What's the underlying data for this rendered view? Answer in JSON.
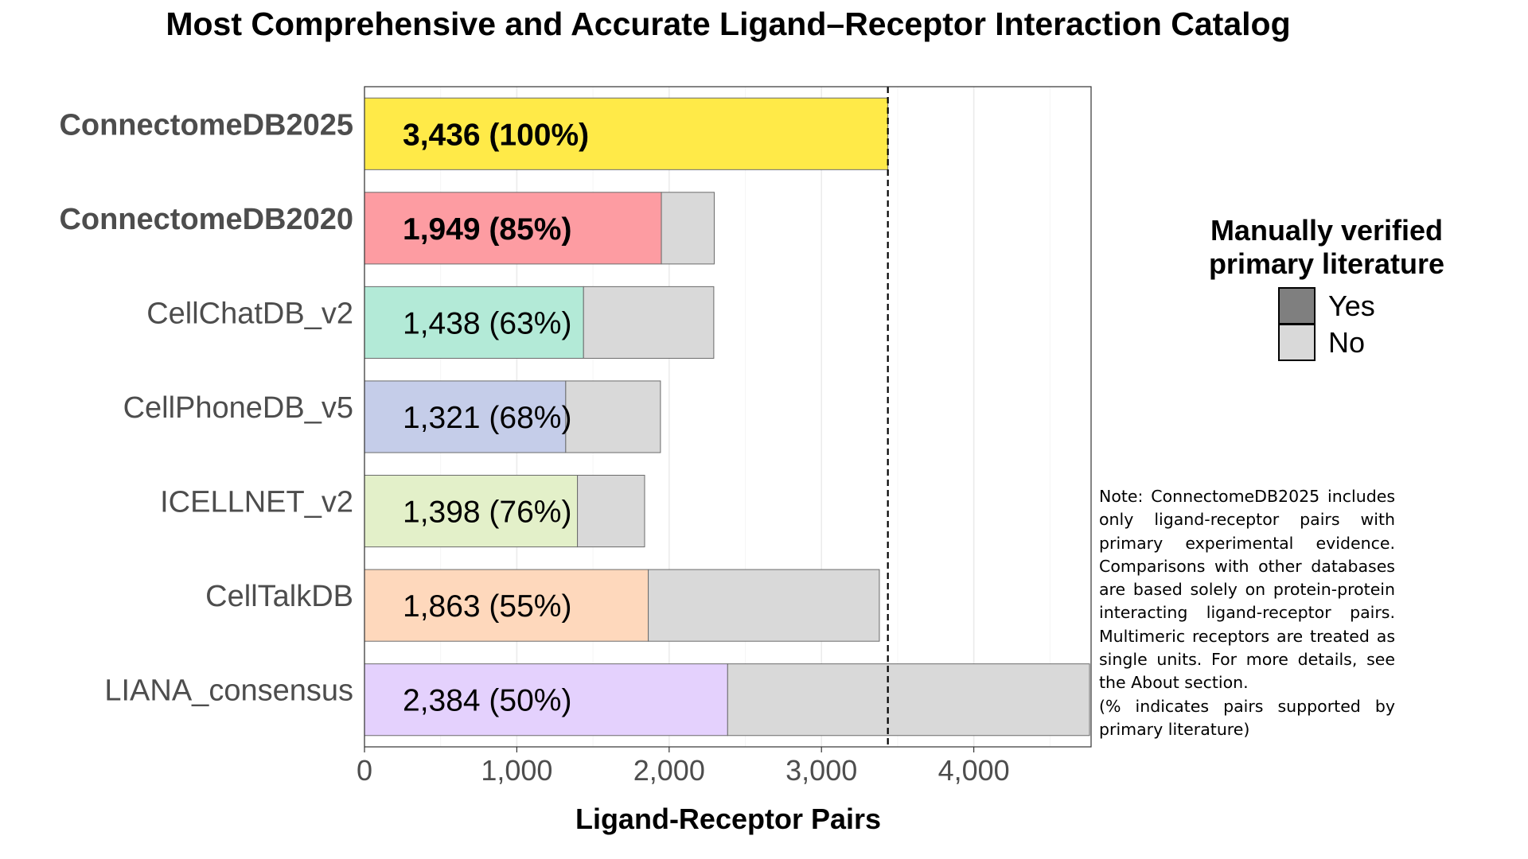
{
  "chart_data": {
    "type": "bar",
    "orientation": "horizontal",
    "stacked": true,
    "title": "Most Comprehensive and Accurate Ligand–Receptor Interaction Catalog",
    "xlabel": "Ligand-Receptor Pairs",
    "ylabel": "",
    "xlim": [
      0,
      4770
    ],
    "xticks": [
      0,
      1000,
      2000,
      3000,
      4000
    ],
    "xtick_labels": [
      "0",
      "1,000",
      "2,000",
      "3,000",
      "4,000"
    ],
    "grid": "vertical-major-and-minor",
    "reference_line": {
      "x": 3436,
      "style": "dashed"
    },
    "categories": [
      "ConnectomeDB2025",
      "ConnectomeDB2020",
      "CellChatDB_v2",
      "CellPhoneDB_v5",
      "ICELLNET_v2",
      "CellTalkDB",
      "LIANA_consensus"
    ],
    "bold_categories": [
      "ConnectomeDB2025",
      "ConnectomeDB2020"
    ],
    "series": [
      {
        "name": "Yes",
        "values": [
          3436,
          1949,
          1438,
          1321,
          1398,
          1863,
          2384
        ]
      },
      {
        "name": "No",
        "values": [
          0,
          347,
          855,
          622,
          441,
          1517,
          2376
        ]
      }
    ],
    "bar_colors": [
      "#ffea48",
      "#fd9ca2",
      "#b3ead7",
      "#c5cde9",
      "#e3f0c9",
      "#fed8bc",
      "#e4d1fd"
    ],
    "no_color": "#d9d9d9",
    "bar_labels": [
      "3,436 (100%)",
      "1,949 (85%)",
      "1,438 (63%)",
      "1,321 (68%)",
      "1,398 (76%)",
      "1,863 (55%)",
      "2,384 (50%)"
    ],
    "legend": {
      "title_lines": [
        "Manually verified",
        "primary literature"
      ],
      "placement": "right",
      "items": [
        {
          "label": "Yes",
          "color": "#7f7f7f"
        },
        {
          "label": "No",
          "color": "#d9d9d9"
        }
      ]
    }
  },
  "note": {
    "paragraph1": "Note: ConnectomeDB2025 includes only ligand-receptor pairs with primary experimental evidence. Comparisons with other databases are based solely on protein-protein interacting ligand-receptor pairs. Multimeric receptors are treated as single units. For more details, see the About section.",
    "paragraph2": "(% indicates pairs supported by primary literature)"
  }
}
